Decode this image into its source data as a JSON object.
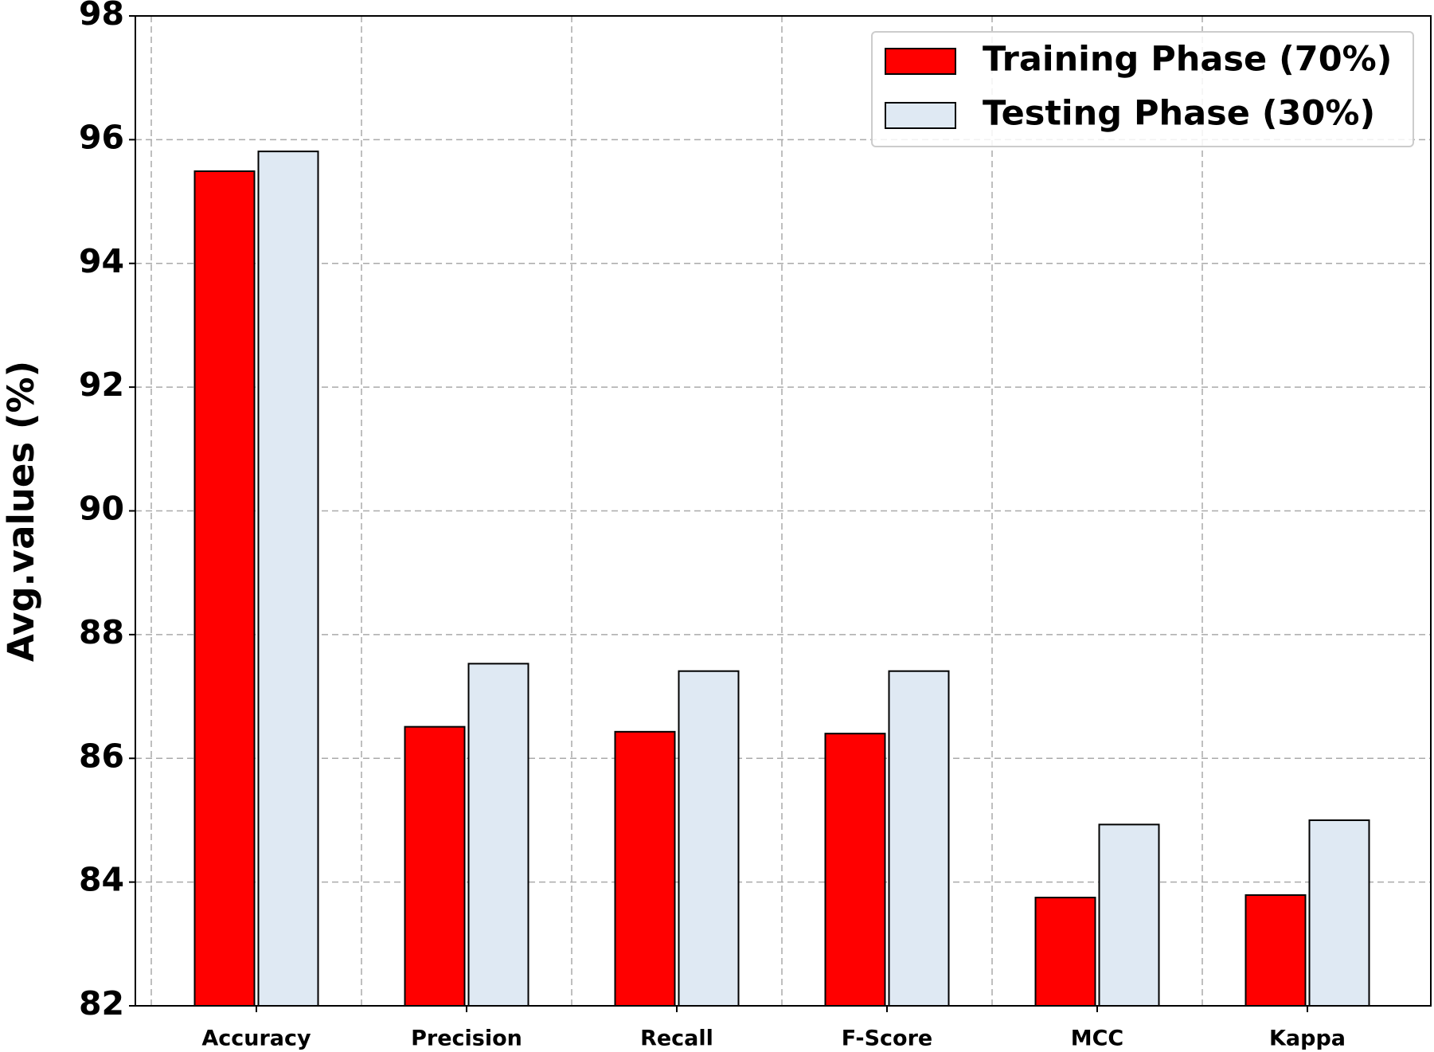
{
  "chart_data": {
    "type": "bar",
    "y_label": "Avg.values (%)",
    "categories": [
      "Accuracy",
      "Precision",
      "Recall",
      "F-Score",
      "MCC",
      "Kappa"
    ],
    "series": [
      {
        "name": "Training Phase (70%)",
        "color": "#ff0000",
        "values": [
          95.49,
          86.51,
          86.43,
          86.4,
          83.75,
          83.79
        ]
      },
      {
        "name": "Testing Phase (30%)",
        "color": "#dfe9f3",
        "values": [
          95.81,
          87.53,
          87.41,
          87.41,
          84.93,
          85.0
        ]
      }
    ],
    "ylim": [
      82,
      98
    ],
    "yticks": [
      82,
      84,
      86,
      88,
      90,
      92,
      94,
      96,
      98
    ],
    "grid": true,
    "legend": "upper right"
  }
}
